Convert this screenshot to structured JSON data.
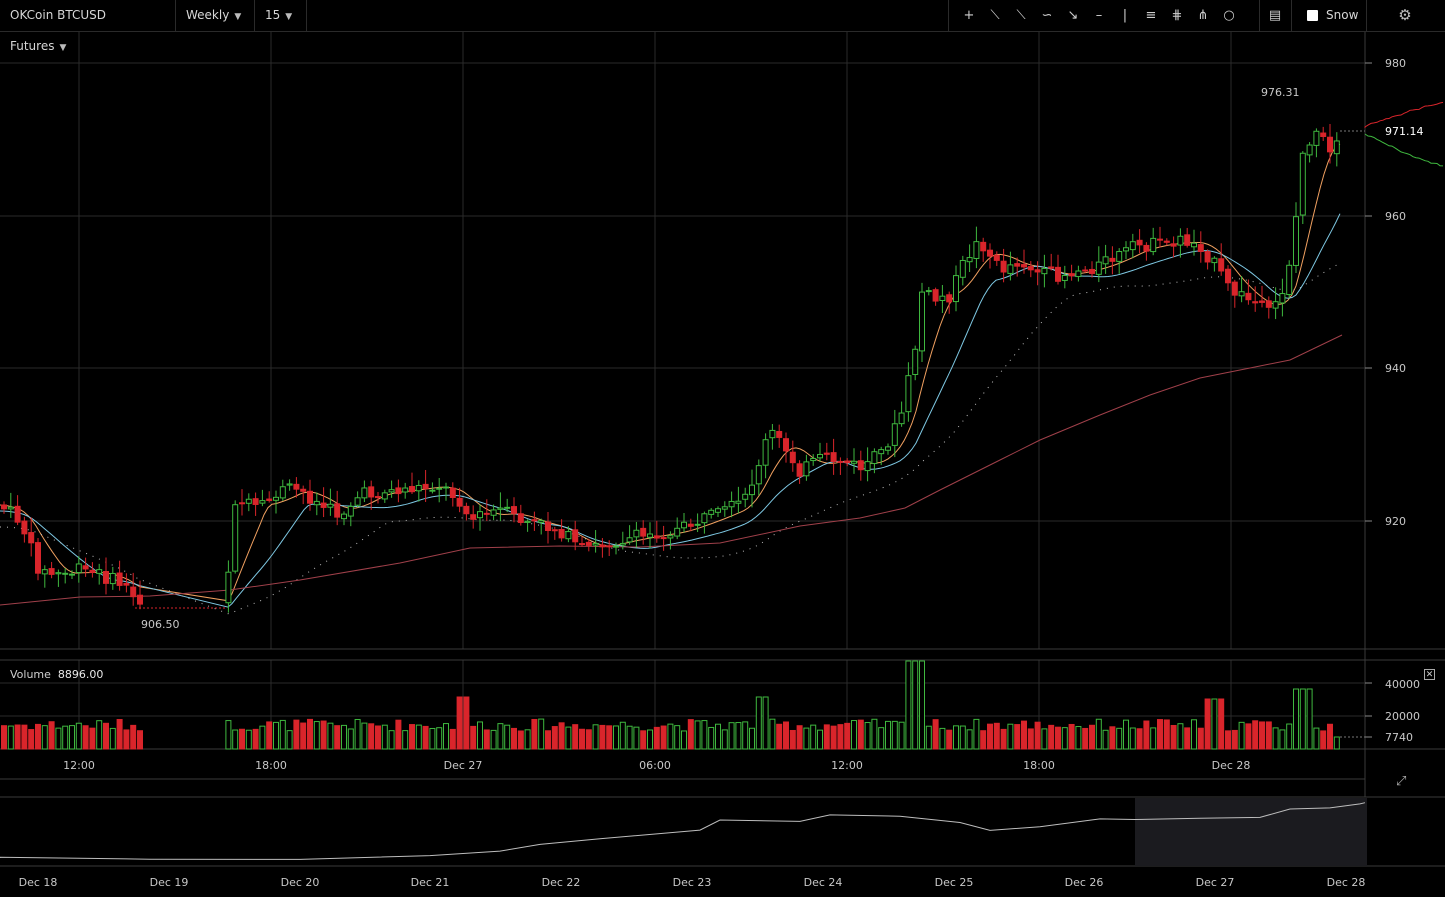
{
  "toolbar": {
    "symbol": "OKCoin BTCUSD Futures",
    "period": "Weekly",
    "interval": "15",
    "snow_label": "Snow",
    "tools": [
      "crosshair-icon",
      "trend-line-icon",
      "ray-icon",
      "curve-icon",
      "arrow-icon",
      "horizontal-line-icon",
      "vertical-line-icon",
      "fib-icon",
      "pitchfork-icon",
      "fan-icon",
      "circle-icon"
    ],
    "indicator_icon": "indicator-icon",
    "settings_icon": "gear-icon"
  },
  "price_axis": {
    "ticks": [
      "980",
      "960",
      "940",
      "920"
    ],
    "current_price": "971.14"
  },
  "annotations": {
    "high": "976.31",
    "low": "906.50"
  },
  "volume": {
    "label": "Volume",
    "value": "8896.00",
    "ticks": [
      "40000",
      "20000",
      "7740"
    ]
  },
  "time_axis": {
    "labels": [
      "12:00",
      "18:00",
      "Dec 27",
      "06:00",
      "12:00",
      "18:00",
      "Dec 28"
    ]
  },
  "navigator": {
    "labels": [
      "Dec 18",
      "Dec 19",
      "Dec 20",
      "Dec 21",
      "Dec 22",
      "Dec 23",
      "Dec 24",
      "Dec 25",
      "Dec 26",
      "Dec 27",
      "Dec 28"
    ]
  },
  "colors": {
    "up": "#3fb83f",
    "down": "#d9252b",
    "ma_orange": "#f0a060",
    "ma_blue": "#7ec8e3",
    "ma_maroon": "#a0404a",
    "grid": "#2a2a2a"
  }
}
